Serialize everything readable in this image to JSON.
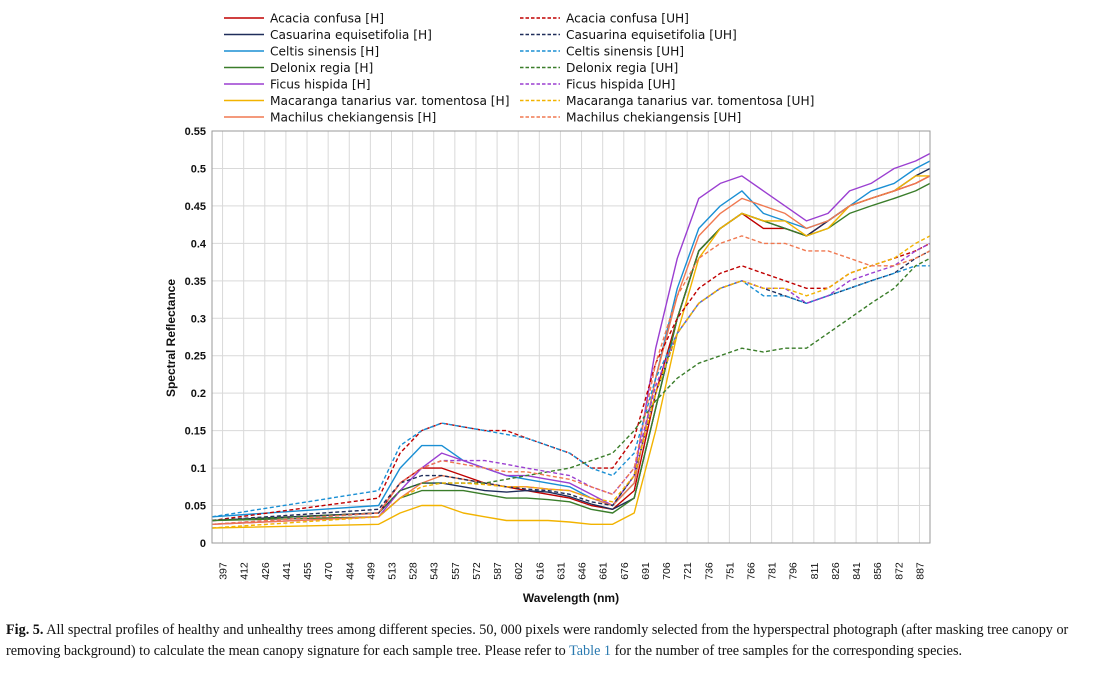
{
  "caption": {
    "fig_label": "Fig. 5.",
    "text_before_ref": " All spectral profiles of healthy and unhealthy trees among different species. 50, 000 pixels were randomly selected from the hyperspectral photograph (after masking tree canopy or removing background) to calculate the mean canopy signature for each sample tree. Please refer to ",
    "ref": "Table 1",
    "text_after_ref": " for the number of tree samples for the corresponding species."
  },
  "chart_data": {
    "type": "line",
    "xlabel": "Wavelength (nm)",
    "ylabel": "Spectral Reflectance",
    "ylim": [
      0,
      0.55
    ],
    "yticks": [
      "0",
      "0.05",
      "0.1",
      "0.15",
      "0.2",
      "0.25",
      "0.3",
      "0.35",
      "0.4",
      "0.45",
      "0.5",
      "0.55"
    ],
    "xlim": [
      397,
      897
    ],
    "xticks": [
      "397",
      "412",
      "426",
      "441",
      "455",
      "470",
      "484",
      "499",
      "513",
      "528",
      "543",
      "557",
      "572",
      "587",
      "602",
      "616",
      "631",
      "646",
      "661",
      "676",
      "691",
      "706",
      "721",
      "736",
      "751",
      "766",
      "781",
      "796",
      "811",
      "826",
      "841",
      "856",
      "872",
      "887"
    ],
    "grid": true,
    "legend_position": "top",
    "series": [
      {
        "name": "Acacia confusa [H]",
        "color": "#c00000",
        "style": "solid",
        "x": [
          397,
          513,
          528,
          543,
          557,
          572,
          587,
          602,
          616,
          631,
          646,
          661,
          676,
          691,
          706,
          721,
          736,
          751,
          766,
          781,
          796,
          811,
          826,
          841,
          856,
          872,
          887,
          897
        ],
        "y": [
          0.03,
          0.04,
          0.08,
          0.1,
          0.1,
          0.09,
          0.08,
          0.075,
          0.07,
          0.065,
          0.06,
          0.05,
          0.045,
          0.07,
          0.2,
          0.3,
          0.39,
          0.42,
          0.44,
          0.42,
          0.42,
          0.41,
          0.43,
          0.45,
          0.46,
          0.47,
          0.48,
          0.49
        ]
      },
      {
        "name": "Casuarina equisetifolia [H]",
        "color": "#1f2d5a",
        "style": "solid",
        "x": [
          397,
          513,
          528,
          543,
          557,
          572,
          587,
          602,
          616,
          631,
          646,
          661,
          676,
          691,
          706,
          721,
          736,
          751,
          766,
          781,
          796,
          811,
          826,
          841,
          856,
          872,
          887,
          897
        ],
        "y": [
          0.03,
          0.04,
          0.07,
          0.08,
          0.08,
          0.075,
          0.07,
          0.068,
          0.07,
          0.068,
          0.062,
          0.052,
          0.045,
          0.06,
          0.18,
          0.3,
          0.39,
          0.42,
          0.44,
          0.43,
          0.42,
          0.41,
          0.43,
          0.45,
          0.46,
          0.47,
          0.49,
          0.5
        ]
      },
      {
        "name": "Celtis sinensis [H]",
        "color": "#1a8fd4",
        "style": "solid",
        "x": [
          397,
          513,
          528,
          543,
          557,
          572,
          587,
          602,
          616,
          631,
          646,
          661,
          676,
          691,
          706,
          721,
          736,
          751,
          766,
          781,
          796,
          811,
          826,
          841,
          856,
          872,
          887,
          897
        ],
        "y": [
          0.035,
          0.05,
          0.1,
          0.13,
          0.13,
          0.11,
          0.1,
          0.09,
          0.085,
          0.08,
          0.075,
          0.06,
          0.05,
          0.08,
          0.22,
          0.34,
          0.42,
          0.45,
          0.47,
          0.44,
          0.43,
          0.42,
          0.43,
          0.45,
          0.47,
          0.48,
          0.5,
          0.51
        ]
      },
      {
        "name": "Delonix regia [H]",
        "color": "#3a7d2a",
        "style": "solid",
        "x": [
          397,
          513,
          528,
          543,
          557,
          572,
          587,
          602,
          616,
          631,
          646,
          661,
          676,
          691,
          706,
          721,
          736,
          751,
          766,
          781,
          796,
          811,
          826,
          841,
          856,
          872,
          887,
          897
        ],
        "y": [
          0.03,
          0.035,
          0.06,
          0.07,
          0.07,
          0.07,
          0.065,
          0.06,
          0.06,
          0.058,
          0.055,
          0.045,
          0.04,
          0.06,
          0.18,
          0.3,
          0.39,
          0.42,
          0.44,
          0.43,
          0.42,
          0.41,
          0.42,
          0.44,
          0.45,
          0.46,
          0.47,
          0.48
        ]
      },
      {
        "name": "Ficus hispida [H]",
        "color": "#9b3fd1",
        "style": "solid",
        "x": [
          397,
          513,
          528,
          543,
          557,
          572,
          587,
          602,
          616,
          631,
          646,
          661,
          676,
          691,
          706,
          721,
          736,
          751,
          766,
          781,
          796,
          811,
          826,
          841,
          856,
          872,
          887,
          897
        ],
        "y": [
          0.025,
          0.035,
          0.07,
          0.1,
          0.12,
          0.11,
          0.1,
          0.09,
          0.09,
          0.085,
          0.08,
          0.065,
          0.05,
          0.09,
          0.26,
          0.38,
          0.46,
          0.48,
          0.49,
          0.47,
          0.45,
          0.43,
          0.44,
          0.47,
          0.48,
          0.5,
          0.51,
          0.52
        ]
      },
      {
        "name": "Macaranga tanarius var. tomentosa [H]",
        "color": "#f2b300",
        "style": "solid",
        "x": [
          397,
          513,
          528,
          543,
          557,
          572,
          587,
          602,
          616,
          631,
          646,
          661,
          676,
          691,
          706,
          721,
          736,
          751,
          766,
          781,
          796,
          811,
          826,
          841,
          856,
          872,
          887,
          897
        ],
        "y": [
          0.02,
          0.025,
          0.04,
          0.05,
          0.05,
          0.04,
          0.035,
          0.03,
          0.03,
          0.03,
          0.028,
          0.025,
          0.025,
          0.04,
          0.15,
          0.28,
          0.38,
          0.42,
          0.44,
          0.43,
          0.43,
          0.41,
          0.42,
          0.45,
          0.46,
          0.47,
          0.49,
          0.49
        ]
      },
      {
        "name": "Machilus chekiangensis [H]",
        "color": "#f07850",
        "style": "solid",
        "x": [
          397,
          513,
          528,
          543,
          557,
          572,
          587,
          602,
          616,
          631,
          646,
          661,
          676,
          691,
          706,
          721,
          736,
          751,
          766,
          781,
          796,
          811,
          826,
          841,
          856,
          872,
          887,
          897
        ],
        "y": [
          0.025,
          0.035,
          0.06,
          0.08,
          0.09,
          0.085,
          0.08,
          0.075,
          0.075,
          0.072,
          0.07,
          0.06,
          0.05,
          0.08,
          0.22,
          0.33,
          0.41,
          0.44,
          0.46,
          0.45,
          0.44,
          0.42,
          0.43,
          0.45,
          0.46,
          0.47,
          0.48,
          0.49
        ]
      },
      {
        "name": "Acacia confusa [UH]",
        "color": "#c00000",
        "style": "dashed",
        "x": [
          397,
          513,
          528,
          543,
          557,
          572,
          587,
          602,
          616,
          631,
          646,
          661,
          676,
          691,
          706,
          721,
          736,
          751,
          766,
          781,
          796,
          811,
          826,
          841,
          856,
          872,
          887,
          897
        ],
        "y": [
          0.03,
          0.06,
          0.12,
          0.15,
          0.16,
          0.155,
          0.15,
          0.15,
          0.14,
          0.13,
          0.12,
          0.1,
          0.1,
          0.14,
          0.24,
          0.3,
          0.34,
          0.36,
          0.37,
          0.36,
          0.35,
          0.34,
          0.34,
          0.36,
          0.37,
          0.38,
          0.39,
          0.4
        ]
      },
      {
        "name": "Casuarina equisetifolia [UH]",
        "color": "#1f2d5a",
        "style": "dashed",
        "x": [
          397,
          513,
          528,
          543,
          557,
          572,
          587,
          602,
          616,
          631,
          646,
          661,
          676,
          691,
          706,
          721,
          736,
          751,
          766,
          781,
          796,
          811,
          826,
          841,
          856,
          872,
          887,
          897
        ],
        "y": [
          0.03,
          0.045,
          0.08,
          0.09,
          0.09,
          0.085,
          0.08,
          0.075,
          0.072,
          0.07,
          0.065,
          0.055,
          0.05,
          0.09,
          0.2,
          0.28,
          0.32,
          0.34,
          0.35,
          0.34,
          0.33,
          0.32,
          0.33,
          0.34,
          0.35,
          0.36,
          0.38,
          0.39
        ]
      },
      {
        "name": "Celtis sinensis [UH]",
        "color": "#1a8fd4",
        "style": "dashed",
        "x": [
          397,
          513,
          528,
          543,
          557,
          572,
          587,
          602,
          616,
          631,
          646,
          661,
          676,
          691,
          706,
          721,
          736,
          751,
          766,
          781,
          796,
          811,
          826,
          841,
          856,
          872,
          887,
          897
        ],
        "y": [
          0.035,
          0.07,
          0.13,
          0.15,
          0.16,
          0.155,
          0.15,
          0.145,
          0.14,
          0.13,
          0.12,
          0.1,
          0.09,
          0.12,
          0.22,
          0.28,
          0.32,
          0.34,
          0.35,
          0.33,
          0.33,
          0.32,
          0.33,
          0.34,
          0.35,
          0.36,
          0.37,
          0.37
        ]
      },
      {
        "name": "Delonix regia [UH]",
        "color": "#3a7d2a",
        "style": "dashed",
        "x": [
          397,
          513,
          528,
          543,
          557,
          572,
          587,
          602,
          616,
          631,
          646,
          661,
          676,
          691,
          706,
          721,
          736,
          751,
          766,
          781,
          796,
          811,
          826,
          841,
          856,
          872,
          887,
          897
        ],
        "y": [
          0.03,
          0.04,
          0.07,
          0.08,
          0.08,
          0.08,
          0.08,
          0.085,
          0.09,
          0.095,
          0.1,
          0.11,
          0.12,
          0.15,
          0.19,
          0.22,
          0.24,
          0.25,
          0.26,
          0.255,
          0.26,
          0.26,
          0.28,
          0.3,
          0.32,
          0.34,
          0.37,
          0.38
        ]
      },
      {
        "name": "Ficus hispida [UH]",
        "color": "#9b3fd1",
        "style": "dashed",
        "x": [
          397,
          513,
          528,
          543,
          557,
          572,
          587,
          602,
          616,
          631,
          646,
          661,
          676,
          691,
          706,
          721,
          736,
          751,
          766,
          781,
          796,
          811,
          826,
          841,
          856,
          872,
          887,
          897
        ],
        "y": [
          0.025,
          0.04,
          0.08,
          0.1,
          0.11,
          0.11,
          0.11,
          0.105,
          0.1,
          0.095,
          0.09,
          0.075,
          0.065,
          0.1,
          0.21,
          0.28,
          0.32,
          0.34,
          0.35,
          0.34,
          0.34,
          0.32,
          0.33,
          0.35,
          0.36,
          0.37,
          0.39,
          0.4
        ]
      },
      {
        "name": "Macaranga tanarius var. tomentosa [UH]",
        "color": "#f2b300",
        "style": "dashed",
        "x": [
          397,
          513,
          528,
          543,
          557,
          572,
          587,
          602,
          616,
          631,
          646,
          661,
          676,
          691,
          706,
          721,
          736,
          751,
          766,
          781,
          796,
          811,
          826,
          841,
          856,
          872,
          887,
          897
        ],
        "y": [
          0.02,
          0.035,
          0.06,
          0.075,
          0.08,
          0.08,
          0.078,
          0.075,
          0.075,
          0.072,
          0.07,
          0.06,
          0.055,
          0.09,
          0.2,
          0.28,
          0.32,
          0.34,
          0.35,
          0.34,
          0.34,
          0.33,
          0.34,
          0.36,
          0.37,
          0.38,
          0.4,
          0.41
        ]
      },
      {
        "name": "Machilus chekiangensis [UH]",
        "color": "#f07850",
        "style": "dashed",
        "x": [
          397,
          513,
          528,
          543,
          557,
          572,
          587,
          602,
          616,
          631,
          646,
          661,
          676,
          691,
          706,
          721,
          736,
          751,
          766,
          781,
          796,
          811,
          826,
          841,
          856,
          872,
          887,
          897
        ],
        "y": [
          0.025,
          0.04,
          0.08,
          0.1,
          0.11,
          0.105,
          0.1,
          0.095,
          0.095,
          0.09,
          0.085,
          0.075,
          0.065,
          0.1,
          0.24,
          0.33,
          0.38,
          0.4,
          0.41,
          0.4,
          0.4,
          0.39,
          0.39,
          0.38,
          0.37,
          0.37,
          0.38,
          0.39
        ]
      }
    ]
  }
}
